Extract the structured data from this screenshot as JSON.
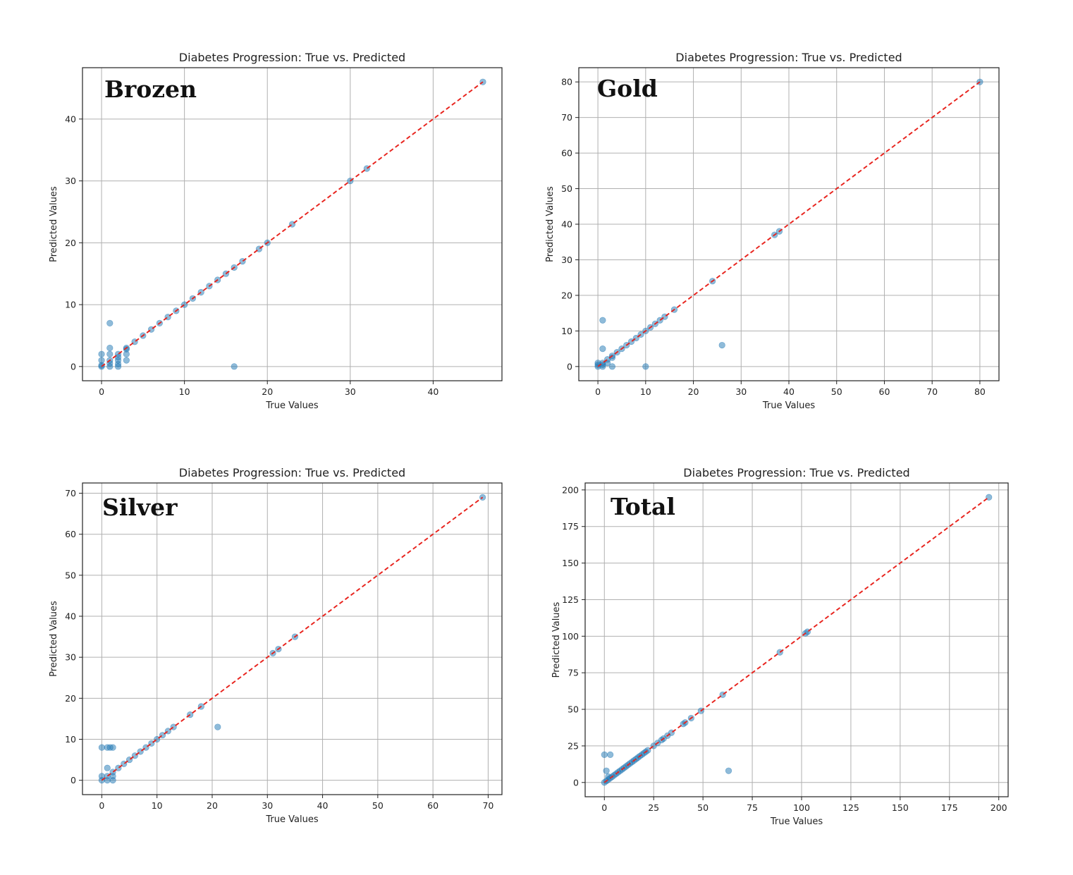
{
  "chart_data": [
    {
      "type": "scatter",
      "label": "Brozen",
      "title": "Diabetes Progression: True vs. Predicted",
      "xlabel": "True Values",
      "ylabel": "Predicted Values",
      "xlim": [
        -2.3,
        48.3
      ],
      "ylim": [
        -2.3,
        48.3
      ],
      "xticks": [
        0,
        10,
        20,
        30,
        40
      ],
      "yticks": [
        0,
        10,
        20,
        30,
        40
      ],
      "grid": true,
      "reference_line": [
        [
          0,
          0
        ],
        [
          46,
          46
        ]
      ],
      "x": [
        0,
        0,
        0,
        0,
        1,
        1,
        1,
        1,
        1,
        1,
        2,
        2,
        2,
        2,
        2,
        3,
        3,
        3,
        3,
        4,
        5,
        6,
        7,
        8,
        9,
        10,
        11,
        12,
        13,
        14,
        15,
        16,
        16,
        17,
        19,
        20,
        23,
        30,
        32,
        46
      ],
      "y": [
        0,
        1,
        2,
        0.2,
        0,
        1,
        2,
        3,
        7,
        0.5,
        0,
        1,
        2,
        0.4,
        1.5,
        1,
        2,
        3,
        2.8,
        4,
        5,
        6,
        7,
        8,
        9,
        10,
        11,
        12,
        13,
        14,
        15,
        16,
        0,
        17,
        19,
        20,
        23,
        30,
        32,
        46
      ]
    },
    {
      "type": "scatter",
      "label": "Gold",
      "title": "Diabetes Progression: True vs. Predicted",
      "xlabel": "True Values",
      "ylabel": "Predicted Values",
      "xlim": [
        -4,
        84
      ],
      "ylim": [
        -4,
        84
      ],
      "xticks": [
        0,
        10,
        20,
        30,
        40,
        50,
        60,
        70,
        80
      ],
      "yticks": [
        0,
        10,
        20,
        30,
        40,
        50,
        60,
        70,
        80
      ],
      "grid": true,
      "reference_line": [
        [
          0,
          0
        ],
        [
          80,
          80
        ]
      ],
      "x": [
        0,
        0,
        0,
        1,
        1,
        1,
        1,
        1,
        2,
        2,
        3,
        3,
        3,
        4,
        5,
        6,
        7,
        8,
        9,
        10,
        10,
        11,
        12,
        13,
        14,
        16,
        24,
        26,
        37,
        38,
        80
      ],
      "y": [
        0,
        1,
        0.5,
        0,
        1,
        5,
        13,
        0.5,
        1,
        2,
        3,
        0,
        2.5,
        4,
        5,
        6,
        7,
        8,
        9,
        10,
        0,
        11,
        12,
        13,
        14,
        16,
        24,
        6,
        37,
        38,
        80
      ]
    },
    {
      "type": "scatter",
      "label": "Silver",
      "title": "Diabetes Progression: True vs. Predicted",
      "xlabel": "True Values",
      "ylabel": "Predicted Values",
      "xlim": [
        -3.5,
        72.5
      ],
      "ylim": [
        -3.5,
        72.5
      ],
      "xticks": [
        0,
        10,
        20,
        30,
        40,
        50,
        60,
        70
      ],
      "yticks": [
        0,
        10,
        20,
        30,
        40,
        50,
        60,
        70
      ],
      "grid": true,
      "reference_line": [
        [
          0,
          0
        ],
        [
          69,
          69
        ]
      ],
      "x": [
        0,
        0,
        0,
        1,
        1,
        1,
        1,
        1.5,
        2,
        2,
        2,
        2,
        3,
        4,
        5,
        6,
        7,
        8,
        9,
        10,
        11,
        12,
        13,
        16,
        18,
        21,
        31,
        32,
        35,
        69
      ],
      "y": [
        0,
        1,
        8,
        0,
        1,
        3,
        8,
        8,
        0,
        1,
        2,
        8,
        3,
        4,
        5,
        6,
        7,
        8,
        9,
        10,
        11,
        12,
        13,
        16,
        18,
        13,
        31,
        32,
        35,
        69
      ]
    },
    {
      "type": "scatter",
      "label": "Total",
      "title": "Diabetes Progression: True vs. Predicted",
      "xlabel": "True Values",
      "ylabel": "Predicted Values",
      "xlim": [
        -9.75,
        204.75
      ],
      "ylim": [
        -9.75,
        204.75
      ],
      "xticks": [
        0,
        25,
        50,
        75,
        100,
        125,
        150,
        175,
        200
      ],
      "yticks": [
        0,
        25,
        50,
        75,
        100,
        125,
        150,
        175,
        200
      ],
      "grid": true,
      "reference_line": [
        [
          0,
          0
        ],
        [
          195,
          195
        ]
      ],
      "x": [
        0,
        0,
        1,
        1,
        2,
        2,
        3,
        3,
        4,
        5,
        6,
        7,
        8,
        9,
        10,
        11,
        12,
        13,
        14,
        15,
        16,
        17,
        18,
        19,
        20,
        21,
        22,
        25,
        27,
        29,
        30,
        32,
        34,
        40,
        41,
        44,
        49,
        60,
        63,
        89,
        102,
        103,
        195
      ],
      "y": [
        0,
        19,
        1,
        8,
        2,
        4,
        3,
        19,
        4,
        5,
        6,
        7,
        8,
        9,
        10,
        11,
        12,
        13,
        14,
        15,
        16,
        17,
        18,
        19,
        20,
        21,
        22,
        25,
        27,
        29,
        30,
        32,
        34,
        40,
        41,
        44,
        49,
        60,
        8,
        89,
        102,
        103,
        195
      ]
    }
  ]
}
